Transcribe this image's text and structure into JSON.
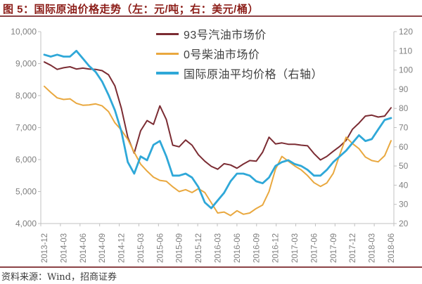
{
  "header": {
    "title": "图 5：国际原油价格走势（左：元/吨；右：美元/桶）"
  },
  "footer": {
    "source": "资料来源：Wind，招商证券"
  },
  "colors": {
    "title_red": "#8c1d18",
    "rule_red": "#8b4346",
    "axis_line": "#c0c0c0",
    "axis_text": "#7f7f7f",
    "legend_text": "#3f3f3f",
    "series_gasoline": "#7b2c33",
    "series_diesel": "#e9a83f",
    "series_crude": "#2fa8d8"
  },
  "chart_data": {
    "type": "line",
    "title": "国际原油价格走势（左：元/吨；右：美元/桶）",
    "ylabel_left": "元/吨",
    "ylabel_right": "美元/桶",
    "grid": false,
    "legend_position": "inside-top-center",
    "x": [
      "2013-12",
      "2014-01",
      "2014-02",
      "2014-03",
      "2014-04",
      "2014-05",
      "2014-06",
      "2014-07",
      "2014-08",
      "2014-09",
      "2014-10",
      "2014-11",
      "2014-12",
      "2015-01",
      "2015-02",
      "2015-03",
      "2015-04",
      "2015-05",
      "2015-06",
      "2015-07",
      "2015-08",
      "2015-09",
      "2015-10",
      "2015-11",
      "2015-12",
      "2016-01",
      "2016-02",
      "2016-03",
      "2016-04",
      "2016-05",
      "2016-06",
      "2016-07",
      "2016-08",
      "2016-09",
      "2016-10",
      "2016-11",
      "2016-12",
      "2017-01",
      "2017-02",
      "2017-03",
      "2017-04",
      "2017-05",
      "2017-06",
      "2017-07",
      "2017-08",
      "2017-09",
      "2017-10",
      "2017-11",
      "2017-12",
      "2018-01",
      "2018-02",
      "2018-03",
      "2018-04",
      "2018-05",
      "2018-06"
    ],
    "x_tick_every": 3,
    "left_axis": {
      "min": 4000,
      "max": 10000,
      "step": 1000,
      "tick_labels": [
        "10,000",
        "9,000",
        "8,000",
        "7,000",
        "6,000",
        "5,000",
        "4,000"
      ]
    },
    "right_axis": {
      "min": 20,
      "max": 120,
      "step": 10,
      "tick_labels": [
        "120",
        "110",
        "100",
        "90",
        "80",
        "70",
        "60",
        "50",
        "40",
        "30",
        "20"
      ]
    },
    "series": [
      {
        "name": "93号汽油市场价",
        "slug": "gasoline-93",
        "axis": "left",
        "color": "#7b2c33",
        "values": [
          9050,
          8950,
          8820,
          8870,
          8900,
          8830,
          8860,
          8830,
          8820,
          8780,
          8650,
          8300,
          7600,
          6700,
          6200,
          6900,
          7220,
          7100,
          7680,
          7250,
          6450,
          6400,
          6610,
          6450,
          6150,
          5950,
          5790,
          5700,
          5870,
          5830,
          5730,
          5860,
          5970,
          5950,
          6230,
          6700,
          6490,
          6520,
          6480,
          6480,
          6450,
          6430,
          6190,
          5990,
          6100,
          6260,
          6410,
          6600,
          6950,
          7140,
          7360,
          7390,
          7330,
          7360,
          7620
        ]
      },
      {
        "name": "0号柴油市场价",
        "slug": "diesel-0",
        "axis": "left",
        "color": "#e9a83f",
        "values": [
          8290,
          8100,
          7930,
          7880,
          7900,
          7760,
          7700,
          7710,
          7740,
          7680,
          7500,
          7150,
          6920,
          6630,
          6230,
          5860,
          5640,
          5450,
          5350,
          5320,
          5150,
          5000,
          5060,
          4970,
          5090,
          4970,
          4650,
          4330,
          4360,
          4250,
          4400,
          4290,
          4330,
          4470,
          4580,
          5000,
          5700,
          6100,
          5950,
          5800,
          5680,
          5500,
          5280,
          5160,
          5270,
          5570,
          6150,
          6700,
          6500,
          6340,
          6080,
          5970,
          5930,
          6120,
          6590
        ]
      },
      {
        "name": "国际原油平均价格（右轴）",
        "slug": "crude-intl",
        "axis": "right",
        "color": "#2fa8d8",
        "values": [
          108,
          107,
          108,
          107,
          107,
          110,
          106,
          102,
          99,
          94,
          87,
          79,
          68,
          52,
          46,
          55,
          53,
          61,
          63,
          55,
          45,
          45,
          46,
          44,
          39,
          31,
          28,
          32,
          36,
          42,
          46,
          46,
          45,
          42,
          41,
          44,
          50,
          52,
          53,
          51,
          50,
          48,
          45,
          45,
          48,
          52,
          55,
          58,
          62,
          66,
          63,
          64,
          69,
          74,
          75
        ]
      }
    ]
  }
}
